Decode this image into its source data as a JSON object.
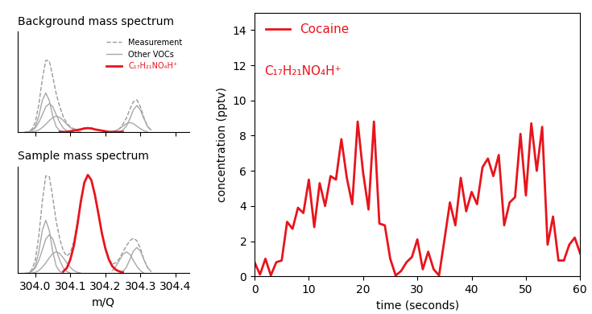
{
  "chart_data": [
    {
      "type": "line",
      "title": "Background mass spectrum",
      "x": [
        303.97,
        303.98,
        303.99,
        304.0,
        304.01,
        304.02,
        304.03,
        304.04,
        304.05,
        304.06,
        304.07,
        304.08,
        304.09,
        304.1,
        304.11,
        304.12,
        304.13,
        304.14,
        304.15,
        304.16,
        304.17,
        304.18,
        304.19,
        304.2,
        304.21,
        304.22,
        304.23,
        304.24,
        304.25,
        304.26,
        304.27,
        304.28,
        304.29,
        304.3,
        304.31,
        304.32,
        304.33
      ],
      "series": [
        {
          "name": "Measurement",
          "color": "#9a9a9a",
          "line_style": "dashed",
          "values": [
            0.0,
            0.0,
            0.04,
            0.15,
            0.43,
            0.84,
            1.14,
            1.13,
            0.88,
            0.6,
            0.4,
            0.24,
            0.14,
            0.08,
            0.05,
            0.04,
            0.04,
            0.06,
            0.06,
            0.06,
            0.04,
            0.03,
            0.02,
            0.01,
            0.0,
            0.0,
            0.02,
            0.05,
            0.12,
            0.22,
            0.36,
            0.48,
            0.51,
            0.4,
            0.23,
            0.09,
            0.03
          ]
        },
        {
          "name": "Other VOCs",
          "color": "#a8a8a8",
          "line_style": "solid",
          "values": [
            [
              null,
              0.0,
              0.02,
              0.08,
              0.25,
              0.5,
              0.62,
              0.5,
              0.25,
              0.08,
              0.02,
              0.0,
              null,
              null,
              null,
              null,
              null,
              null,
              null,
              null,
              null,
              null,
              null,
              null,
              null,
              null,
              null,
              null,
              null,
              null,
              null,
              null,
              null,
              null,
              null,
              null,
              null
            ],
            [
              null,
              0.0,
              0.02,
              0.06,
              0.15,
              0.27,
              0.4,
              0.45,
              0.4,
              0.27,
              0.15,
              0.06,
              0.02,
              0.0,
              null,
              null,
              null,
              null,
              null,
              null,
              null,
              null,
              null,
              null,
              null,
              null,
              null,
              null,
              null,
              null,
              null,
              null,
              null,
              null,
              null,
              null,
              null
            ],
            [
              null,
              null,
              0.0,
              0.01,
              0.03,
              0.07,
              0.12,
              0.18,
              0.23,
              0.25,
              0.23,
              0.18,
              0.12,
              0.07,
              0.03,
              0.01,
              0.0,
              null,
              null,
              null,
              null,
              null,
              null,
              null,
              null,
              null,
              null,
              null,
              null,
              null,
              null,
              null,
              null,
              null,
              null,
              null,
              null
            ],
            [
              null,
              null,
              null,
              null,
              null,
              null,
              null,
              null,
              null,
              null,
              null,
              null,
              null,
              null,
              null,
              null,
              null,
              null,
              null,
              null,
              null,
              null,
              null,
              null,
              null,
              0.0,
              0.02,
              0.05,
              0.09,
              0.13,
              0.15,
              0.13,
              0.09,
              0.05,
              0.02,
              0.0,
              null
            ],
            [
              null,
              null,
              null,
              null,
              null,
              null,
              null,
              null,
              null,
              null,
              null,
              null,
              null,
              null,
              null,
              null,
              null,
              null,
              null,
              null,
              null,
              null,
              null,
              null,
              null,
              null,
              null,
              0.0,
              0.03,
              0.09,
              0.21,
              0.35,
              0.42,
              0.35,
              0.21,
              0.09,
              0.03
            ]
          ]
        },
        {
          "name": "C₁₇H₂₁NO₄H⁺",
          "color": "#e8141c",
          "line_style": "solid",
          "values": [
            null,
            null,
            null,
            null,
            null,
            null,
            null,
            null,
            null,
            null,
            0.0,
            0.0,
            0.0,
            0.01,
            0.02,
            0.03,
            0.04,
            0.055,
            0.06,
            0.055,
            0.04,
            0.03,
            0.02,
            0.01,
            0.0,
            0.0,
            0.0,
            0.0,
            0.0,
            null,
            null,
            null,
            null,
            null,
            null,
            null,
            null
          ]
        }
      ],
      "xlim": [
        303.95,
        304.44
      ],
      "xticks": [
        304.0,
        304.1,
        304.2,
        304.3,
        304.4
      ],
      "ylim": [
        0,
        1.6
      ],
      "legend": "upper right",
      "tick_labels": false
    },
    {
      "type": "line",
      "title": "Sample mass spectrum",
      "xlabel": "m/Q",
      "x": [
        303.97,
        303.98,
        303.99,
        304.0,
        304.01,
        304.02,
        304.03,
        304.04,
        304.05,
        304.06,
        304.07,
        304.08,
        304.09,
        304.1,
        304.11,
        304.12,
        304.13,
        304.14,
        304.15,
        304.16,
        304.17,
        304.18,
        304.19,
        304.2,
        304.21,
        304.22,
        304.23,
        304.24,
        304.25,
        304.26,
        304.27,
        304.28,
        304.29,
        304.3,
        304.31,
        304.32,
        304.33
      ],
      "series": [
        {
          "name": "Measurement",
          "color": "#9a9a9a",
          "line_style": "dashed",
          "values": [
            0.0,
            0.0,
            0.04,
            0.15,
            0.43,
            0.84,
            1.14,
            1.13,
            0.88,
            0.6,
            0.4,
            0.26,
            0.2,
            0.24,
            0.37,
            0.6,
            0.84,
            1.06,
            1.15,
            1.09,
            0.92,
            0.7,
            0.47,
            0.29,
            0.16,
            0.11,
            0.12,
            0.17,
            0.25,
            0.32,
            0.38,
            0.41,
            0.38,
            0.29,
            0.16,
            0.07,
            0.02
          ]
        },
        {
          "name": "Other VOCs",
          "color": "#a8a8a8",
          "line_style": "solid",
          "values": [
            [
              null,
              0.0,
              0.02,
              0.08,
              0.25,
              0.5,
              0.62,
              0.5,
              0.25,
              0.08,
              0.02,
              0.0,
              null,
              null,
              null,
              null,
              null,
              null,
              null,
              null,
              null,
              null,
              null,
              null,
              null,
              null,
              null,
              null,
              null,
              null,
              null,
              null,
              null,
              null,
              null,
              null,
              null
            ],
            [
              null,
              0.0,
              0.02,
              0.06,
              0.15,
              0.27,
              0.4,
              0.45,
              0.4,
              0.27,
              0.15,
              0.06,
              0.02,
              0.0,
              null,
              null,
              null,
              null,
              null,
              null,
              null,
              null,
              null,
              null,
              null,
              null,
              null,
              null,
              null,
              null,
              null,
              null,
              null,
              null,
              null,
              null,
              null
            ],
            [
              null,
              null,
              0.0,
              0.01,
              0.03,
              0.07,
              0.12,
              0.18,
              0.23,
              0.25,
              0.23,
              0.18,
              0.12,
              0.07,
              0.03,
              0.01,
              0.0,
              null,
              null,
              null,
              null,
              null,
              null,
              null,
              null,
              null,
              null,
              null,
              null,
              null,
              null,
              null,
              null,
              null,
              null,
              null,
              null
            ],
            [
              null,
              null,
              null,
              null,
              null,
              null,
              null,
              null,
              null,
              null,
              null,
              null,
              null,
              null,
              null,
              null,
              null,
              null,
              null,
              null,
              null,
              null,
              null,
              null,
              null,
              0.03,
              0.08,
              0.15,
              0.22,
              0.25,
              0.22,
              0.15,
              0.08,
              0.03,
              0.0,
              null,
              null
            ],
            [
              null,
              null,
              null,
              null,
              null,
              null,
              null,
              null,
              null,
              null,
              null,
              null,
              null,
              null,
              null,
              null,
              null,
              null,
              null,
              null,
              null,
              null,
              null,
              null,
              null,
              null,
              null,
              null,
              0.02,
              0.07,
              0.16,
              0.26,
              0.3,
              0.26,
              0.16,
              0.07,
              0.02
            ]
          ]
        },
        {
          "name": "C₁₇H₂₁NO₄H⁺",
          "color": "#e8141c",
          "line_style": "solid",
          "values": [
            null,
            null,
            null,
            null,
            null,
            null,
            null,
            null,
            null,
            null,
            null,
            0.02,
            0.06,
            0.16,
            0.32,
            0.56,
            0.84,
            1.06,
            1.15,
            1.09,
            0.92,
            0.7,
            0.47,
            0.29,
            0.16,
            0.08,
            0.04,
            0.02,
            0.01,
            null,
            null,
            null,
            null,
            null,
            null,
            null,
            null
          ]
        }
      ],
      "xlim": [
        303.95,
        304.44
      ],
      "xticks": [
        304.0,
        304.1,
        304.2,
        304.3,
        304.4
      ],
      "ylim": [
        0,
        1.25
      ],
      "tick_labels": "x"
    },
    {
      "type": "line",
      "xlabel": "time (seconds)",
      "ylabel": "concentration (pptv)",
      "x": [
        0,
        1,
        2,
        3,
        4,
        5,
        6,
        7,
        8,
        9,
        10,
        11,
        12,
        13,
        14,
        15,
        16,
        17,
        18,
        19,
        20,
        21,
        22,
        23,
        24,
        25,
        26,
        27,
        28,
        29,
        30,
        31,
        32,
        33,
        34,
        35,
        36,
        37,
        38,
        39,
        40,
        41,
        42,
        43,
        44,
        45,
        46,
        47,
        48,
        49,
        50,
        51,
        52,
        53,
        54,
        55,
        56,
        57,
        58,
        59,
        60
      ],
      "series": [
        {
          "name": "Cocaine",
          "color": "#e8141c",
          "line_style": "solid",
          "values": [
            0.8,
            0.1,
            1.0,
            0.05,
            0.8,
            0.9,
            3.1,
            2.7,
            3.9,
            3.6,
            5.5,
            2.8,
            5.3,
            4.0,
            5.7,
            5.5,
            7.8,
            5.6,
            4.1,
            8.8,
            5.9,
            3.8,
            8.8,
            3.0,
            2.9,
            1.0,
            0.05,
            0.3,
            0.8,
            1.1,
            2.1,
            0.4,
            1.4,
            0.4,
            0.05,
            2.1,
            4.2,
            2.9,
            5.6,
            3.7,
            4.8,
            4.1,
            6.2,
            6.7,
            5.7,
            6.9,
            2.9,
            4.2,
            4.5,
            8.1,
            4.6,
            8.7,
            6.0,
            8.5,
            1.8,
            3.4,
            0.9,
            0.9,
            1.8,
            2.2,
            1.3
          ]
        }
      ],
      "xlim": [
        0,
        60
      ],
      "xticks": [
        0,
        10,
        20,
        30,
        40,
        50,
        60
      ],
      "ylim": [
        0,
        15
      ],
      "yticks": [
        0,
        2,
        4,
        6,
        8,
        10,
        12,
        14
      ],
      "legend": "upper left",
      "annotations": [
        "C₁₇H₂₁NO₄H⁺"
      ]
    }
  ]
}
